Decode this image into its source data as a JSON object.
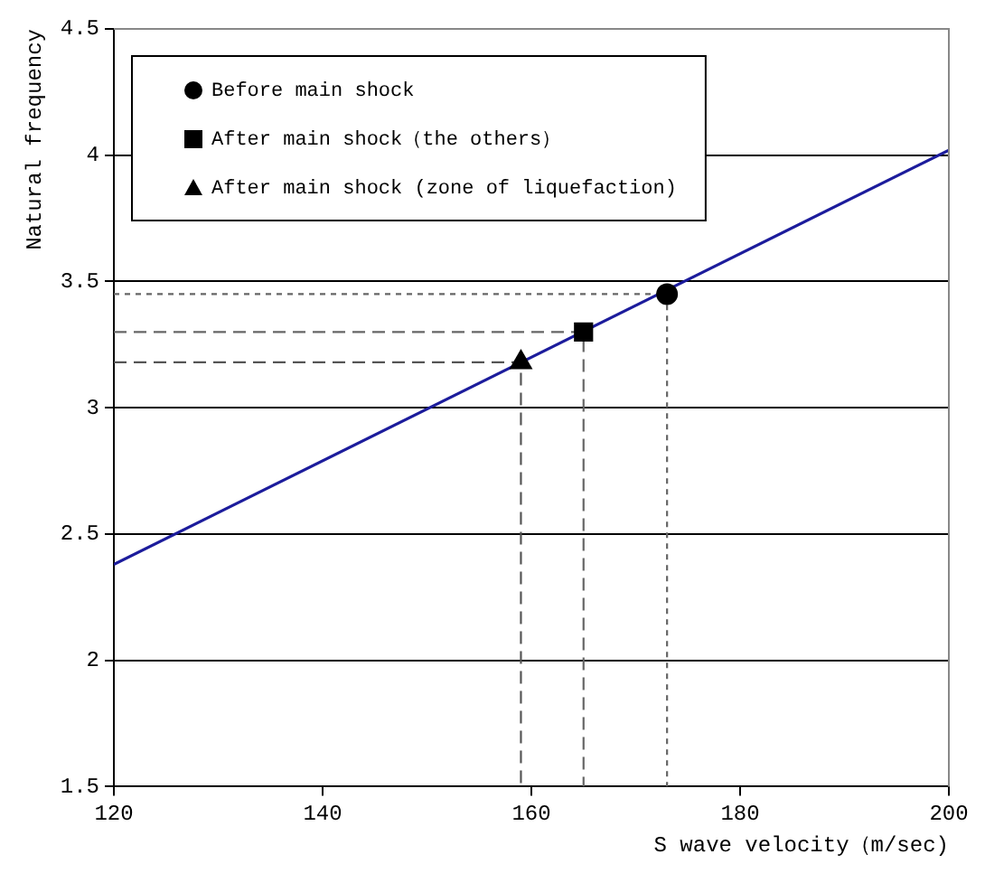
{
  "chart_data": {
    "type": "scatter",
    "xlabel": "S wave velocity（m/sec)",
    "ylabel": "Natural frequency",
    "xlim": [
      120,
      200
    ],
    "xticks": [
      120,
      140,
      160,
      180,
      200
    ],
    "ylim": [
      1.5,
      4.5
    ],
    "yticks": [
      1.5,
      2,
      2.5,
      3,
      3.5,
      4,
      4.5
    ],
    "grid": "y",
    "legend": "top left",
    "series": [
      {
        "type": "line",
        "color": "#1c1c9c",
        "x": [
          120,
          200
        ],
        "values": [
          2.38,
          4.02
        ],
        "marker": "none",
        "line_style": "solid"
      },
      {
        "type": "line",
        "color": "#666666",
        "x": [
          120,
          173,
          173
        ],
        "values": [
          3.45,
          3.45,
          1.5
        ],
        "marker": "none",
        "line_style": "dotted"
      },
      {
        "type": "line",
        "color": "#666666",
        "x": [
          120,
          165,
          165
        ],
        "values": [
          3.3,
          3.3,
          1.5
        ],
        "marker": "none",
        "line_style": "dashed"
      },
      {
        "type": "line",
        "color": "#555555",
        "x": [
          120,
          159,
          159
        ],
        "values": [
          3.18,
          3.18,
          1.5
        ],
        "marker": "none",
        "line_style": "dashed"
      },
      {
        "name": "Before main shock",
        "color": "#000000",
        "x": [
          173
        ],
        "values": [
          3.45
        ],
        "marker": "circle"
      },
      {
        "name": "After main shock（the others）",
        "color": "#000000",
        "x": [
          165
        ],
        "values": [
          3.3
        ],
        "marker": "square"
      },
      {
        "name": "After main shock (zone of liquefaction)",
        "color": "#000000",
        "x": [
          159
        ],
        "values": [
          3.18
        ],
        "marker": "triangle"
      }
    ]
  }
}
